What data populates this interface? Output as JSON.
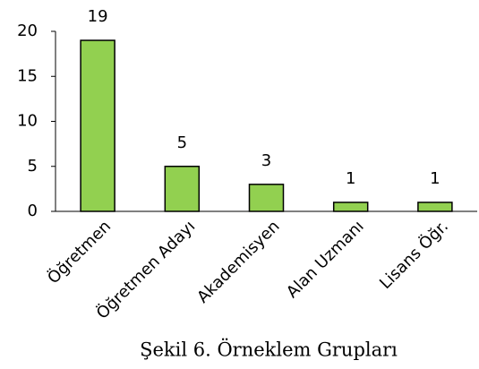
{
  "chart_data": {
    "type": "bar",
    "caption": "Şekil 6. Örneklem Grupları",
    "categories": [
      "Öğretmen",
      "Öğretmen Adayı",
      "Akademisyen",
      "Alan Uzmanı",
      "Lisans Öğr."
    ],
    "values": [
      19,
      5,
      3,
      1,
      1
    ],
    "color": "#92d050",
    "ylim": [
      0,
      20
    ],
    "yticks": [
      0,
      5,
      10,
      15,
      20
    ],
    "grid": false
  }
}
